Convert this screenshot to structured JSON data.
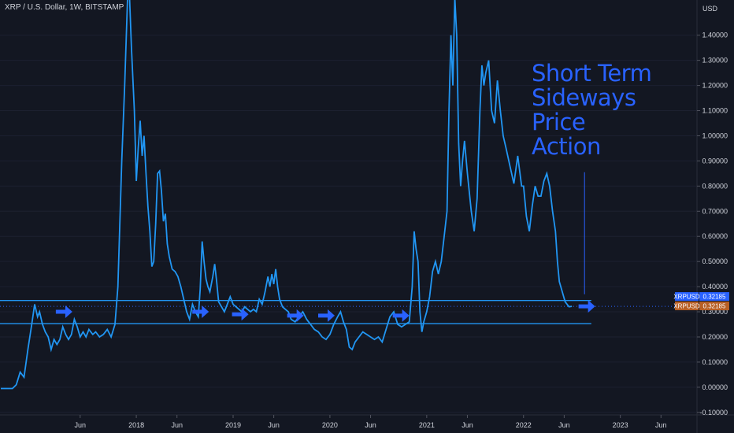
{
  "header": {
    "symbol_line": "XRP / U.S. Dollar, 1W, BITSTAMP"
  },
  "annotation": {
    "lines": [
      "Short Term",
      "Sideways",
      "Price",
      "Action"
    ]
  },
  "colors": {
    "background": "#131722",
    "price_line": "#2196f3",
    "annotation": "#2962ff",
    "badge_blue": "#2962ff",
    "badge_orange": "#b85f24"
  },
  "badges": [
    {
      "label": "XRPUSD",
      "value": "0.32185",
      "color": "#2962ff"
    },
    {
      "label": "XRPUSD",
      "value": "0.32185",
      "color": "#b85f24"
    }
  ],
  "chart_data": {
    "type": "line",
    "currency_label": "USD",
    "x_axis": {
      "range": [
        2016.6,
        2023.8
      ],
      "ticks": [
        {
          "x": 2017.42,
          "label": "Jun"
        },
        {
          "x": 2018.0,
          "label": "2018"
        },
        {
          "x": 2018.42,
          "label": "Jun"
        },
        {
          "x": 2019.0,
          "label": "2019"
        },
        {
          "x": 2019.42,
          "label": "Jun"
        },
        {
          "x": 2020.0,
          "label": "2020"
        },
        {
          "x": 2020.42,
          "label": "Jun"
        },
        {
          "x": 2021.0,
          "label": "2021"
        },
        {
          "x": 2021.42,
          "label": "Jun"
        },
        {
          "x": 2022.0,
          "label": "2022"
        },
        {
          "x": 2022.42,
          "label": "Jun"
        },
        {
          "x": 2023.0,
          "label": "2023"
        },
        {
          "x": 2023.42,
          "label": "Jun"
        }
      ]
    },
    "y_axis": {
      "range": [
        -0.11,
        1.54
      ],
      "ticks": [
        {
          "v": 1.4,
          "label": "1.40000"
        },
        {
          "v": 1.3,
          "label": "1.30000"
        },
        {
          "v": 1.2,
          "label": "1.20000"
        },
        {
          "v": 1.1,
          "label": "1.10000"
        },
        {
          "v": 1.0,
          "label": "1.00000"
        },
        {
          "v": 0.9,
          "label": "0.90000"
        },
        {
          "v": 0.8,
          "label": "0.80000"
        },
        {
          "v": 0.7,
          "label": "0.70000"
        },
        {
          "v": 0.6,
          "label": "0.60000"
        },
        {
          "v": 0.5,
          "label": "0.50000"
        },
        {
          "v": 0.4,
          "label": "0.40000"
        },
        {
          "v": 0.3,
          "label": "0.30000"
        },
        {
          "v": 0.2,
          "label": "0.20000"
        },
        {
          "v": 0.1,
          "label": "0.10000"
        },
        {
          "v": 0.0,
          "label": "0.00000"
        },
        {
          "v": -0.1,
          "label": "-0.10000"
        }
      ]
    },
    "last_price": 0.32185,
    "series": [
      {
        "points": [
          [
            2016.6,
            -0.005
          ],
          [
            2016.72,
            -0.005
          ],
          [
            2016.76,
            0.01
          ],
          [
            2016.8,
            0.06
          ],
          [
            2016.84,
            0.04
          ],
          [
            2016.88,
            0.15
          ],
          [
            2016.92,
            0.25
          ],
          [
            2016.95,
            0.33
          ],
          [
            2016.98,
            0.28
          ],
          [
            2017.0,
            0.3
          ],
          [
            2017.03,
            0.25
          ],
          [
            2017.06,
            0.22
          ],
          [
            2017.09,
            0.2
          ],
          [
            2017.12,
            0.15
          ],
          [
            2017.15,
            0.19
          ],
          [
            2017.18,
            0.17
          ],
          [
            2017.21,
            0.19
          ],
          [
            2017.24,
            0.24
          ],
          [
            2017.27,
            0.21
          ],
          [
            2017.3,
            0.19
          ],
          [
            2017.33,
            0.21
          ],
          [
            2017.36,
            0.27
          ],
          [
            2017.39,
            0.24
          ],
          [
            2017.42,
            0.2
          ],
          [
            2017.45,
            0.22
          ],
          [
            2017.48,
            0.2
          ],
          [
            2017.51,
            0.23
          ],
          [
            2017.55,
            0.21
          ],
          [
            2017.58,
            0.22
          ],
          [
            2017.62,
            0.2
          ],
          [
            2017.66,
            0.21
          ],
          [
            2017.7,
            0.23
          ],
          [
            2017.74,
            0.2
          ],
          [
            2017.78,
            0.25
          ],
          [
            2017.81,
            0.4
          ],
          [
            2017.85,
            0.9
          ],
          [
            2017.88,
            1.2
          ],
          [
            2017.91,
            1.55
          ],
          [
            2017.93,
            1.55
          ],
          [
            2017.95,
            1.35
          ],
          [
            2017.98,
            1.1
          ],
          [
            2018.0,
            0.82
          ],
          [
            2018.02,
            0.95
          ],
          [
            2018.04,
            1.06
          ],
          [
            2018.06,
            0.92
          ],
          [
            2018.08,
            1.0
          ],
          [
            2018.1,
            0.85
          ],
          [
            2018.12,
            0.72
          ],
          [
            2018.14,
            0.62
          ],
          [
            2018.16,
            0.48
          ],
          [
            2018.18,
            0.5
          ],
          [
            2018.2,
            0.65
          ],
          [
            2018.22,
            0.85
          ],
          [
            2018.24,
            0.86
          ],
          [
            2018.26,
            0.78
          ],
          [
            2018.28,
            0.66
          ],
          [
            2018.3,
            0.69
          ],
          [
            2018.32,
            0.57
          ],
          [
            2018.34,
            0.52
          ],
          [
            2018.37,
            0.47
          ],
          [
            2018.4,
            0.46
          ],
          [
            2018.43,
            0.44
          ],
          [
            2018.46,
            0.4
          ],
          [
            2018.49,
            0.35
          ],
          [
            2018.52,
            0.3
          ],
          [
            2018.55,
            0.27
          ],
          [
            2018.58,
            0.33
          ],
          [
            2018.61,
            0.3
          ],
          [
            2018.64,
            0.28
          ],
          [
            2018.66,
            0.39
          ],
          [
            2018.68,
            0.58
          ],
          [
            2018.7,
            0.5
          ],
          [
            2018.72,
            0.43
          ],
          [
            2018.74,
            0.4
          ],
          [
            2018.76,
            0.38
          ],
          [
            2018.79,
            0.44
          ],
          [
            2018.81,
            0.49
          ],
          [
            2018.83,
            0.42
          ],
          [
            2018.85,
            0.34
          ],
          [
            2018.88,
            0.32
          ],
          [
            2018.91,
            0.3
          ],
          [
            2018.94,
            0.33
          ],
          [
            2018.97,
            0.36
          ],
          [
            2019.0,
            0.33
          ],
          [
            2019.03,
            0.32
          ],
          [
            2019.06,
            0.31
          ],
          [
            2019.09,
            0.3
          ],
          [
            2019.12,
            0.32
          ],
          [
            2019.15,
            0.31
          ],
          [
            2019.18,
            0.3
          ],
          [
            2019.21,
            0.31
          ],
          [
            2019.24,
            0.3
          ],
          [
            2019.27,
            0.35
          ],
          [
            2019.3,
            0.33
          ],
          [
            2019.33,
            0.38
          ],
          [
            2019.36,
            0.44
          ],
          [
            2019.38,
            0.4
          ],
          [
            2019.4,
            0.45
          ],
          [
            2019.42,
            0.41
          ],
          [
            2019.44,
            0.47
          ],
          [
            2019.46,
            0.4
          ],
          [
            2019.48,
            0.35
          ],
          [
            2019.51,
            0.32
          ],
          [
            2019.54,
            0.31
          ],
          [
            2019.57,
            0.3
          ],
          [
            2019.6,
            0.27
          ],
          [
            2019.64,
            0.26
          ],
          [
            2019.68,
            0.28
          ],
          [
            2019.72,
            0.3
          ],
          [
            2019.76,
            0.27
          ],
          [
            2019.8,
            0.25
          ],
          [
            2019.84,
            0.23
          ],
          [
            2019.88,
            0.22
          ],
          [
            2019.92,
            0.2
          ],
          [
            2019.96,
            0.19
          ],
          [
            2020.0,
            0.21
          ],
          [
            2020.04,
            0.25
          ],
          [
            2020.08,
            0.28
          ],
          [
            2020.11,
            0.3
          ],
          [
            2020.14,
            0.26
          ],
          [
            2020.17,
            0.23
          ],
          [
            2020.2,
            0.16
          ],
          [
            2020.23,
            0.15
          ],
          [
            2020.26,
            0.18
          ],
          [
            2020.3,
            0.2
          ],
          [
            2020.34,
            0.22
          ],
          [
            2020.38,
            0.21
          ],
          [
            2020.42,
            0.2
          ],
          [
            2020.46,
            0.19
          ],
          [
            2020.5,
            0.2
          ],
          [
            2020.54,
            0.18
          ],
          [
            2020.58,
            0.23
          ],
          [
            2020.62,
            0.28
          ],
          [
            2020.66,
            0.3
          ],
          [
            2020.7,
            0.25
          ],
          [
            2020.74,
            0.24
          ],
          [
            2020.78,
            0.25
          ],
          [
            2020.82,
            0.26
          ],
          [
            2020.85,
            0.4
          ],
          [
            2020.87,
            0.62
          ],
          [
            2020.89,
            0.55
          ],
          [
            2020.91,
            0.5
          ],
          [
            2020.93,
            0.3
          ],
          [
            2020.95,
            0.22
          ],
          [
            2020.97,
            0.26
          ],
          [
            2021.0,
            0.3
          ],
          [
            2021.03,
            0.36
          ],
          [
            2021.06,
            0.46
          ],
          [
            2021.09,
            0.5
          ],
          [
            2021.12,
            0.45
          ],
          [
            2021.15,
            0.5
          ],
          [
            2021.18,
            0.6
          ],
          [
            2021.21,
            0.7
          ],
          [
            2021.23,
            1.1
          ],
          [
            2021.25,
            1.4
          ],
          [
            2021.27,
            1.2
          ],
          [
            2021.29,
            1.55
          ],
          [
            2021.31,
            1.4
          ],
          [
            2021.33,
            0.97
          ],
          [
            2021.35,
            0.8
          ],
          [
            2021.37,
            0.9
          ],
          [
            2021.39,
            0.98
          ],
          [
            2021.42,
            0.85
          ],
          [
            2021.46,
            0.7
          ],
          [
            2021.49,
            0.62
          ],
          [
            2021.52,
            0.75
          ],
          [
            2021.55,
            1.1
          ],
          [
            2021.57,
            1.28
          ],
          [
            2021.59,
            1.2
          ],
          [
            2021.61,
            1.25
          ],
          [
            2021.64,
            1.3
          ],
          [
            2021.67,
            1.1
          ],
          [
            2021.7,
            1.05
          ],
          [
            2021.73,
            1.22
          ],
          [
            2021.76,
            1.1
          ],
          [
            2021.79,
            1.0
          ],
          [
            2021.82,
            0.95
          ],
          [
            2021.86,
            0.88
          ],
          [
            2021.9,
            0.81
          ],
          [
            2021.94,
            0.92
          ],
          [
            2021.98,
            0.8
          ],
          [
            2022.0,
            0.8
          ],
          [
            2022.03,
            0.68
          ],
          [
            2022.06,
            0.62
          ],
          [
            2022.09,
            0.72
          ],
          [
            2022.12,
            0.8
          ],
          [
            2022.15,
            0.76
          ],
          [
            2022.18,
            0.76
          ],
          [
            2022.21,
            0.82
          ],
          [
            2022.24,
            0.85
          ],
          [
            2022.27,
            0.8
          ],
          [
            2022.3,
            0.7
          ],
          [
            2022.33,
            0.62
          ],
          [
            2022.35,
            0.5
          ],
          [
            2022.37,
            0.42
          ],
          [
            2022.4,
            0.38
          ],
          [
            2022.43,
            0.34
          ],
          [
            2022.47,
            0.32
          ],
          [
            2022.5,
            0.32185
          ]
        ]
      }
    ],
    "horizontal_lines": [
      {
        "price": 0.345,
        "x_range": [
          2016.6,
          2022.7
        ]
      },
      {
        "price": 0.253,
        "x_range": [
          2016.6,
          2022.7
        ]
      }
    ],
    "dotted_price_line": 0.32185,
    "vertical_marker": {
      "x": 2022.63,
      "y_range": [
        0.855,
        0.37
      ]
    },
    "arrow_markers": [
      {
        "x": 2017.25,
        "y": 0.3
      },
      {
        "x": 2018.66,
        "y": 0.3
      },
      {
        "x": 2019.07,
        "y": 0.29
      },
      {
        "x": 2019.64,
        "y": 0.285
      },
      {
        "x": 2019.96,
        "y": 0.285
      },
      {
        "x": 2020.73,
        "y": 0.285
      },
      {
        "x": 2022.65,
        "y": 0.32185
      }
    ]
  }
}
